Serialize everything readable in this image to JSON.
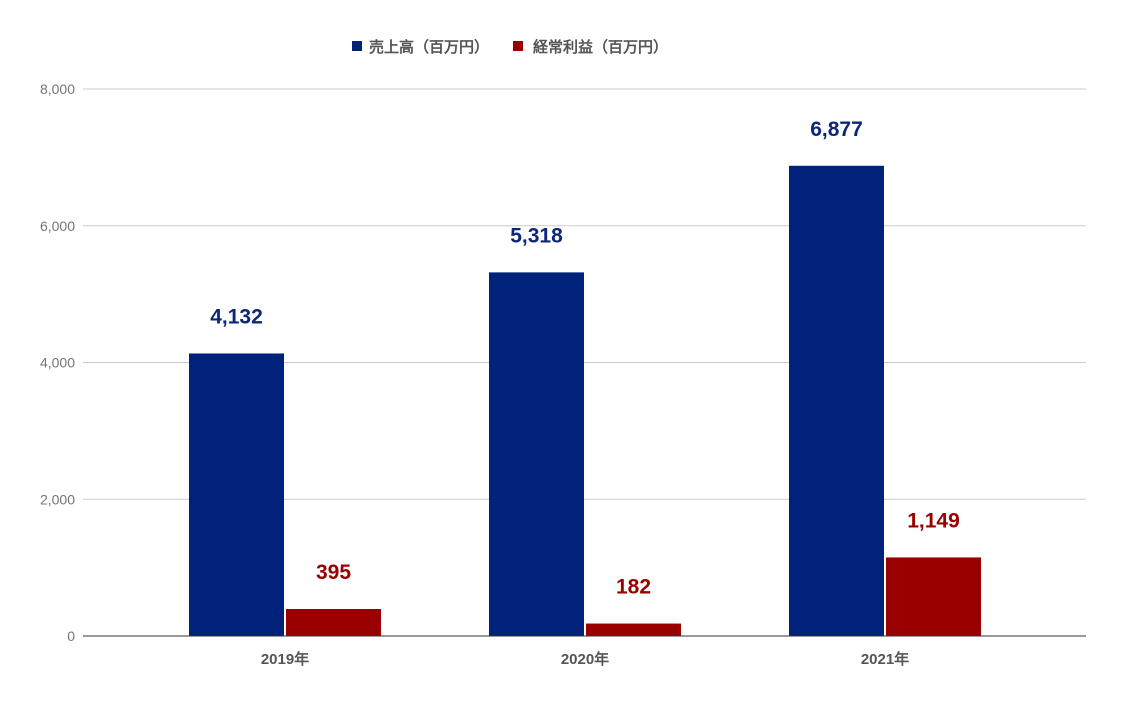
{
  "chart_data": {
    "type": "bar",
    "categories": [
      "2019年",
      "2020年",
      "2021年"
    ],
    "series": [
      {
        "name": "売上高（百万円）",
        "color": "#00227b",
        "label_color": "#0b2878",
        "values": [
          4132,
          5318,
          6877
        ],
        "data_labels": [
          "4,132",
          "5,318",
          "6,877"
        ]
      },
      {
        "name": "経常利益（百万円）",
        "color": "#990000",
        "label_color": "#990000",
        "values": [
          395,
          182,
          1149
        ],
        "data_labels": [
          "395",
          "182",
          "1,149"
        ]
      }
    ],
    "ylim": [
      0,
      8000
    ],
    "yticks": [
      0,
      2000,
      4000,
      6000,
      8000
    ],
    "ytick_labels": [
      "0",
      "2,000",
      "4,000",
      "6,000",
      "8,000"
    ],
    "grid": true,
    "legend_position": "top"
  }
}
